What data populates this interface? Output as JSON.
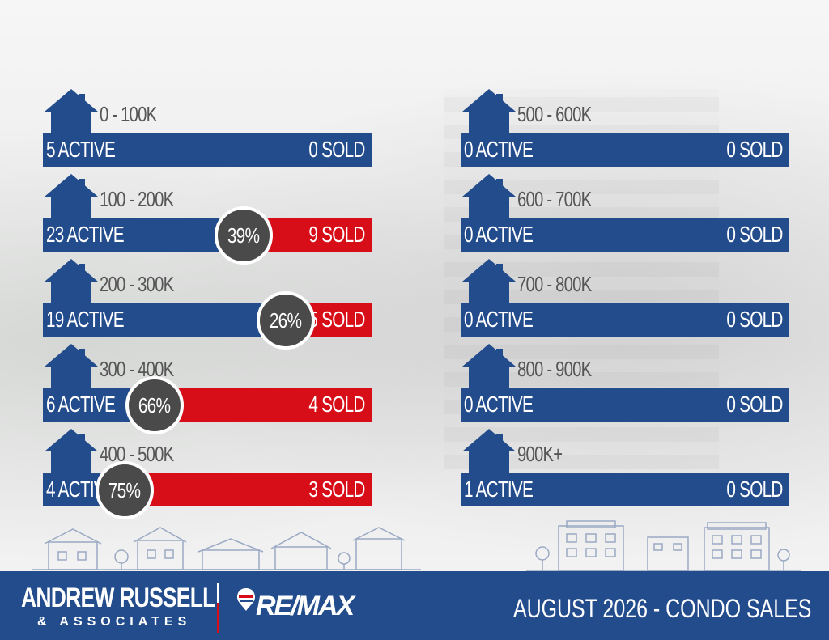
{
  "tiers": [
    {
      "range": "0 - 100K",
      "active": "5 ACTIVE",
      "sold": "0 SOLD",
      "pct": null,
      "sold_ratio": 0
    },
    {
      "range": "100 - 200K",
      "active": "23 ACTIVE",
      "sold": "9 SOLD",
      "pct": "39%",
      "sold_ratio": 0.39
    },
    {
      "range": "200 - 300K",
      "active": "19 ACTIVE",
      "sold": "5 SOLD",
      "pct": "26%",
      "sold_ratio": 0.26
    },
    {
      "range": "300 - 400K",
      "active": "6 ACTIVE",
      "sold": "4 SOLD",
      "pct": "66%",
      "sold_ratio": 0.66
    },
    {
      "range": "400 - 500K",
      "active": "4 ACTIVE",
      "sold": "3 SOLD",
      "pct": "75%",
      "sold_ratio": 0.75
    },
    {
      "range": "500 - 600K",
      "active": "0 ACTIVE",
      "sold": "0 SOLD",
      "pct": null,
      "sold_ratio": 0
    },
    {
      "range": "600 - 700K",
      "active": "0 ACTIVE",
      "sold": "0 SOLD",
      "pct": null,
      "sold_ratio": 0
    },
    {
      "range": "700 - 800K",
      "active": "0 ACTIVE",
      "sold": "0 SOLD",
      "pct": null,
      "sold_ratio": 0
    },
    {
      "range": "800 - 900K",
      "active": "0 ACTIVE",
      "sold": "0 SOLD",
      "pct": null,
      "sold_ratio": 0
    },
    {
      "range": "900K+",
      "active": "1 ACTIVE",
      "sold": "0 SOLD",
      "pct": null,
      "sold_ratio": 0
    }
  ],
  "footer": {
    "brand_name": "ANDREW RUSSELL",
    "brand_sub": "& ASSOCIATES",
    "logo_text": "RE/MAX",
    "report_title": "AUGUST 2026 -  CONDO SALES"
  },
  "colors": {
    "navy": "#234c8c",
    "red": "#d70d18",
    "circle": "#4a4a4a"
  },
  "icons": [
    "house-icon",
    "remax-balloon-icon",
    "town-skyline-illustration",
    "city-skyline-illustration"
  ]
}
